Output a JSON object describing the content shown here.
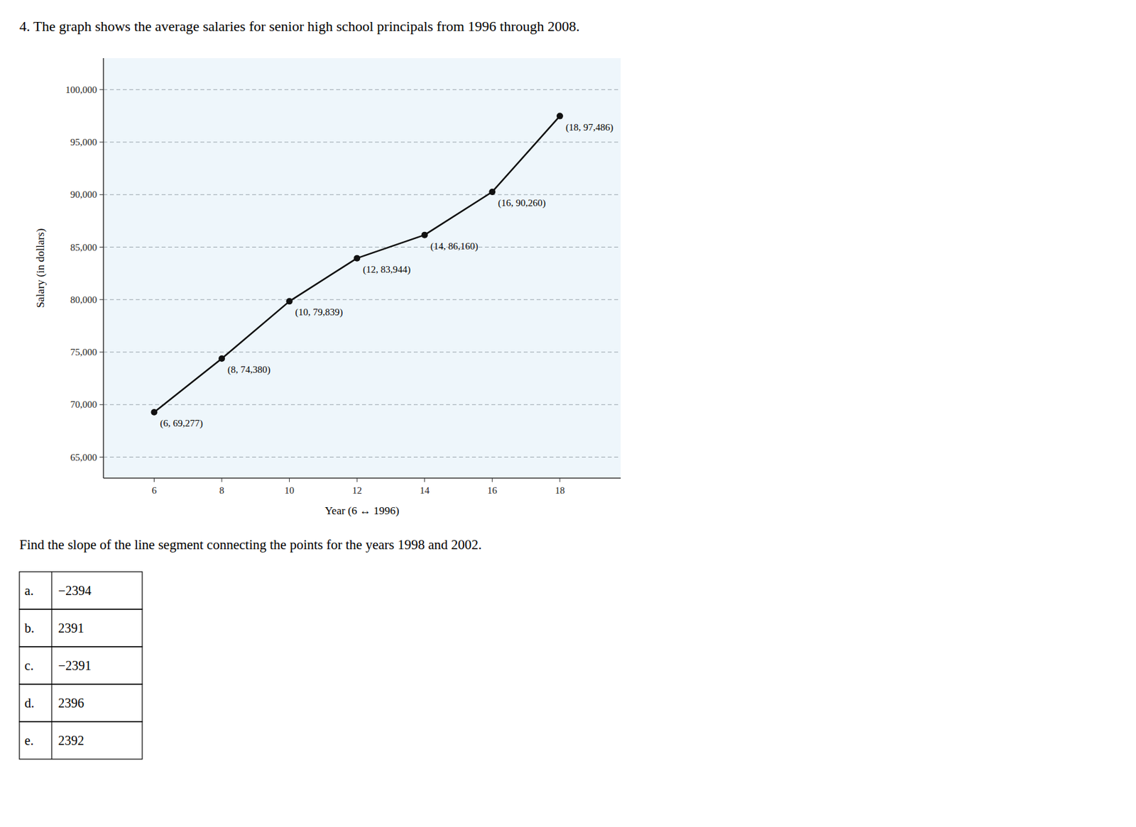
{
  "chart_data": {
    "type": "line",
    "title": "4. The graph shows the average salaries for senior high school principals from 1996 through 2008.",
    "x_label": "Year (6 ↔ 1996)",
    "y_label": "Salary (in dollars)",
    "x": [
      6,
      8,
      10,
      12,
      14,
      16,
      18
    ],
    "values": [
      69277,
      74380,
      79839,
      83944,
      86160,
      90260,
      97486
    ],
    "value_labels": [
      "(6, 69,277)",
      "(8, 74,380)",
      "(10, 79,839)",
      "(12, 83,944)",
      "(14, 86,160)",
      "(16, 90,260)",
      "(18, 97,486)"
    ],
    "data_labels": true,
    "color": "#111111",
    "marker": "circle",
    "grid": true,
    "xlim": [
      4.5,
      19.8
    ],
    "ylim": [
      63000,
      103000
    ],
    "xticks": [
      6,
      8,
      10,
      12,
      14,
      16,
      18
    ],
    "yticks": [
      {
        "value": 65000,
        "label": "65,000"
      },
      {
        "value": 70000,
        "label": "70,000"
      },
      {
        "value": 75000,
        "label": "75,000"
      },
      {
        "value": 80000,
        "label": "80,000"
      },
      {
        "value": 85000,
        "label": "85,000"
      },
      {
        "value": 90000,
        "label": "90,000"
      },
      {
        "value": 95000,
        "label": "95,000"
      },
      {
        "value": 100000,
        "label": "100,000"
      }
    ],
    "annotations": [
      "Find the slope of the line segment connecting the points for the years 1998 and 2002.",
      [
        "a.",
        "−2394"
      ],
      [
        "b.",
        "2391"
      ],
      [
        "c.",
        "−2391"
      ],
      [
        "d.",
        "2396"
      ],
      [
        "e.",
        "2392"
      ]
    ]
  }
}
